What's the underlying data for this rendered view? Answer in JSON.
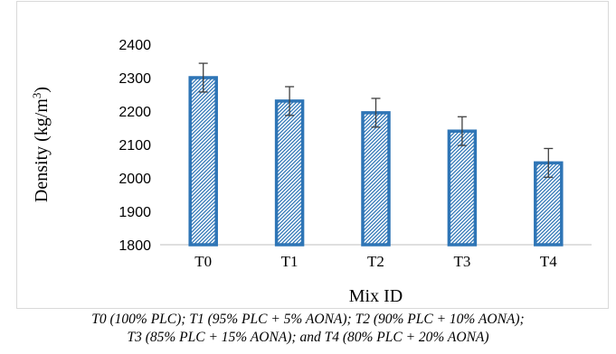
{
  "chart_data": {
    "type": "bar",
    "title": "",
    "xlabel": "Mix ID",
    "ylabel_main": "Density (kg/m",
    "ylabel_sup": "3",
    "ylabel_close": ")",
    "categories": [
      "T0",
      "T1",
      "T2",
      "T3",
      "T4"
    ],
    "values": [
      2300,
      2230,
      2195,
      2140,
      2045
    ],
    "error": [
      43,
      43,
      43,
      43,
      43
    ],
    "ylim": [
      1800,
      2400
    ],
    "yticks": [
      1800,
      1900,
      2000,
      2100,
      2200,
      2300,
      2400
    ],
    "grid": false,
    "legend": "none",
    "bar_pattern": "diagonal-hatch",
    "colors": {
      "bar_border": "#2e75b6",
      "hatch": "#2e75b6",
      "error_bar": "#404040",
      "axis": "#bfbfbf"
    }
  },
  "caption": {
    "line1": "T0 (100% PLC); T1 (95% PLC + 5% AONA); T2 (90% PLC + 10% AONA);",
    "line2": "T3 (85% PLC + 15% AONA); and T4 (80% PLC + 20% AONA)"
  }
}
